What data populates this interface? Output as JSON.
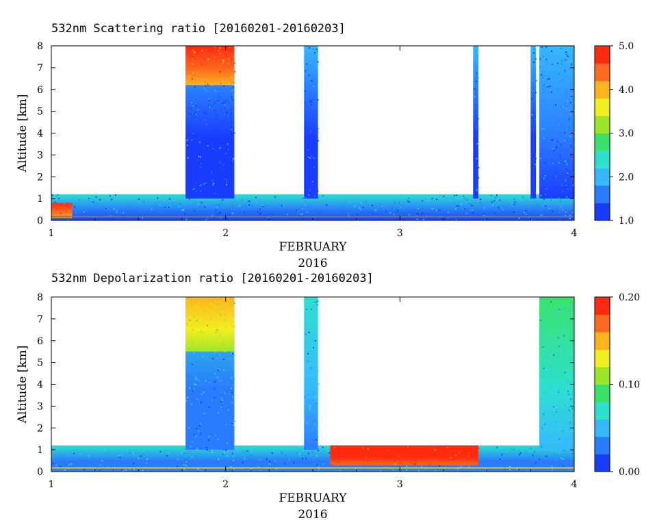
{
  "chart_data": [
    {
      "type": "heatmap",
      "title": "532nm Scattering ratio [20160201-20160203]",
      "xlabel": "FEBRUARY",
      "xlabel2": "2016",
      "ylabel": "Altitude [km]",
      "x_ticks": [
        "1",
        "2",
        "3",
        "4"
      ],
      "y_ticks": [
        "0",
        "1",
        "2",
        "3",
        "4",
        "5",
        "6",
        "7",
        "8"
      ],
      "xlim": [
        1,
        4
      ],
      "ylim": [
        0,
        8
      ],
      "colorbar": {
        "range": [
          1.0,
          5.0
        ],
        "ticks": [
          "1.0",
          "2.0",
          "3.0",
          "4.0",
          "5.0"
        ],
        "tick_values": [
          1.0,
          2.0,
          3.0,
          4.0,
          5.0
        ]
      },
      "colormap": [
        "#1a3cff",
        "#2a7cff",
        "#36b8ff",
        "#2de0d0",
        "#39e36a",
        "#9be628",
        "#f2ef1e",
        "#ffb41e",
        "#ff6a1e",
        "#ff2a10"
      ],
      "features": [
        {
          "name": "boundary-layer",
          "x_start": 1.0,
          "x_end": 4.0,
          "y_top_km": 1.2,
          "value": 1.6
        },
        {
          "name": "low-layer-start",
          "x_start": 1.0,
          "x_end": 1.12,
          "y_bottom_km": 0.1,
          "y_top_km": 0.8,
          "value": 4.5
        },
        {
          "name": "cloud-column-1",
          "x_start": 1.77,
          "x_end": 2.05,
          "y_bottom_km": 1.0,
          "y_top_km": 8.0,
          "value": 1.4
        },
        {
          "name": "cloud-top-1",
          "x_start": 1.77,
          "x_end": 2.05,
          "y_bottom_km": 6.2,
          "y_top_km": 8.0,
          "value": 4.3
        },
        {
          "name": "cloud-column-2",
          "x_start": 2.45,
          "x_end": 2.53,
          "y_bottom_km": 1.0,
          "y_top_km": 8.0,
          "value": 1.4
        },
        {
          "name": "cloud-column-3",
          "x_start": 3.42,
          "x_end": 3.45,
          "y_bottom_km": 1.0,
          "y_top_km": 8.0,
          "value": 1.4
        },
        {
          "name": "cloud-column-4",
          "x_start": 3.75,
          "x_end": 3.78,
          "y_bottom_km": 1.0,
          "y_top_km": 8.0,
          "value": 1.4
        },
        {
          "name": "cloud-column-5",
          "x_start": 3.8,
          "x_end": 4.0,
          "y_bottom_km": 1.0,
          "y_top_km": 8.0,
          "value": 1.5
        }
      ]
    },
    {
      "type": "heatmap",
      "title": "532nm Depolarization ratio [20160201-20160203]",
      "xlabel": "FEBRUARY",
      "xlabel2": "2016",
      "ylabel": "Altitude [km]",
      "x_ticks": [
        "1",
        "2",
        "3",
        "4"
      ],
      "y_ticks": [
        "0",
        "1",
        "2",
        "3",
        "4",
        "5",
        "6",
        "7",
        "8"
      ],
      "xlim": [
        1,
        4
      ],
      "ylim": [
        0,
        8
      ],
      "colorbar": {
        "range": [
          0.0,
          0.2
        ],
        "ticks": [
          "0.00",
          "0.10",
          "0.20"
        ],
        "tick_values": [
          0.0,
          0.1,
          0.2
        ]
      },
      "colormap": [
        "#1a3cff",
        "#2a7cff",
        "#36b8ff",
        "#2de0d0",
        "#39e36a",
        "#9be628",
        "#f2ef1e",
        "#ffb41e",
        "#ff6a1e",
        "#ff2a10"
      ],
      "features": [
        {
          "name": "boundary-layer",
          "x_start": 1.0,
          "x_end": 4.0,
          "y_top_km": 1.2,
          "value": 0.04
        },
        {
          "name": "cloud-column-1",
          "x_start": 1.77,
          "x_end": 2.05,
          "y_bottom_km": 1.0,
          "y_top_km": 8.0,
          "value": 0.04
        },
        {
          "name": "cloud-top-1",
          "x_start": 1.77,
          "x_end": 2.05,
          "y_bottom_km": 5.5,
          "y_top_km": 8.0,
          "value": 0.13
        },
        {
          "name": "cloud-column-2",
          "x_start": 2.45,
          "x_end": 2.53,
          "y_bottom_km": 1.0,
          "y_top_km": 8.0,
          "value": 0.05
        },
        {
          "name": "cloud-column-5",
          "x_start": 3.8,
          "x_end": 4.0,
          "y_bottom_km": 1.0,
          "y_top_km": 8.0,
          "value": 0.06
        },
        {
          "name": "high-depol-pockets",
          "x_start": 2.6,
          "x_end": 3.45,
          "y_bottom_km": 0.3,
          "y_top_km": 1.2,
          "value": 0.19
        }
      ]
    }
  ]
}
